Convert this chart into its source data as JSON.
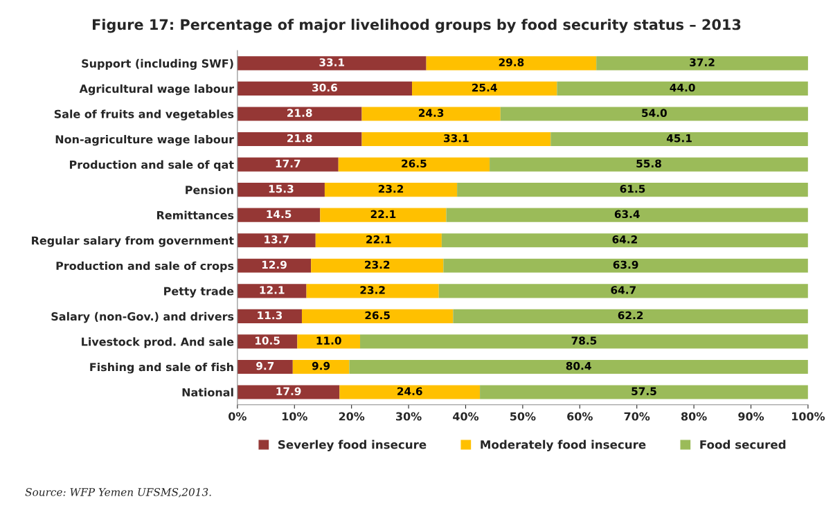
{
  "chart_data": {
    "type": "bar",
    "orientation": "horizontal",
    "stacked": true,
    "title": "Figure 17: Percentage of major livelihood groups by food security status – 2013",
    "categories": [
      "Support (including SWF)",
      "Agricultural wage labour",
      "Sale of fruits and vegetables",
      "Non-agriculture wage labour",
      "Production and sale of qat",
      "Pension",
      "Remittances",
      "Regular salary from government",
      "Production and sale of crops",
      "Petty trade",
      "Salary (non-Gov.) and drivers",
      "Livestock prod. And sale",
      "Fishing and sale of fish",
      "National"
    ],
    "series": [
      {
        "name": "Severley food insecure",
        "color": "#953735",
        "values": [
          33.1,
          30.6,
          21.8,
          21.8,
          17.7,
          15.3,
          14.5,
          13.7,
          12.9,
          12.1,
          11.3,
          10.5,
          9.7,
          17.9
        ],
        "value_labels": [
          "33.1",
          "30.6",
          "21.8",
          "21.8",
          "17.7",
          "15.3",
          "14.5",
          "13.7",
          "12.9",
          "12.1",
          "11.3",
          "10.5",
          "9.7",
          "17.9"
        ]
      },
      {
        "name": "Moderately food insecure",
        "color": "#ffc000",
        "values": [
          29.8,
          25.4,
          24.3,
          33.1,
          26.5,
          23.2,
          22.1,
          22.1,
          23.2,
          23.2,
          26.5,
          11.0,
          9.9,
          24.6
        ],
        "value_labels": [
          "29.8",
          "25.4",
          "24.3",
          "33.1",
          "26.5",
          "23.2",
          "22.1",
          "22.1",
          "23.2",
          "23.2",
          "26.5",
          "11.0",
          "9.9",
          "24.6"
        ]
      },
      {
        "name": "Food secured",
        "color": "#9bbb59",
        "values": [
          37.2,
          44.0,
          54.0,
          45.1,
          55.8,
          61.5,
          63.4,
          64.2,
          63.9,
          64.7,
          62.2,
          78.5,
          80.4,
          57.5
        ],
        "value_labels": [
          "37.2",
          "44.0",
          "54.0",
          "45.1",
          "55.8",
          "61.5",
          "63.4",
          "64.2",
          "63.9",
          "64.7",
          "62.2",
          "78.5",
          "80.4",
          "57.5"
        ]
      }
    ],
    "xlim": [
      0,
      100
    ],
    "xticks": [
      {
        "value": 0,
        "label": "0%"
      },
      {
        "value": 10,
        "label": "10%"
      },
      {
        "value": 20,
        "label": "20%"
      },
      {
        "value": 30,
        "label": "30%"
      },
      {
        "value": 40,
        "label": "40%"
      },
      {
        "value": 50,
        "label": "50%"
      },
      {
        "value": 60,
        "label": "60%"
      },
      {
        "value": 70,
        "label": "70%"
      },
      {
        "value": 80,
        "label": "80%"
      },
      {
        "value": 90,
        "label": "90%"
      },
      {
        "value": 100,
        "label": "100%"
      }
    ],
    "legend": "bottom",
    "grid": false,
    "annotations": [
      "Source: WFP Yemen UFSMS,2013."
    ]
  }
}
